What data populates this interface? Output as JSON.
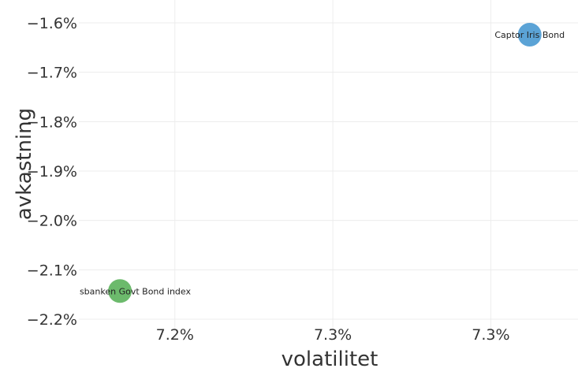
{
  "chart_data": {
    "type": "scatter",
    "xlabel": "volatilitet",
    "ylabel": "avkastning",
    "x_ticks": [
      {
        "value": 7.205,
        "label": "7.2%"
      },
      {
        "value": 7.255,
        "label": "7.3%"
      },
      {
        "value": 7.305,
        "label": "7.3%"
      }
    ],
    "y_ticks": [
      {
        "value": -1.6,
        "label": "−1.6%"
      },
      {
        "value": -1.7,
        "label": "−1.7%"
      },
      {
        "value": -1.8,
        "label": "−1.8%"
      },
      {
        "value": -1.9,
        "label": "−1.9%"
      },
      {
        "value": -2.0,
        "label": "−2.0%"
      },
      {
        "value": -2.1,
        "label": "−2.1%"
      },
      {
        "value": -2.2,
        "label": "−2.2%"
      }
    ],
    "xlim": [
      7.1746,
      7.3326
    ],
    "ylim": [
      -2.2,
      -1.58
    ],
    "grid": true,
    "points": [
      {
        "label": "Captor Iris Bond",
        "x": 7.3173,
        "y": -1.624,
        "color": "#5ba3d6"
      },
      {
        "label": "Handelsbanken Govt Bond index",
        "x": 7.1876,
        "y": -2.143,
        "color": "#6cba6c"
      }
    ]
  }
}
